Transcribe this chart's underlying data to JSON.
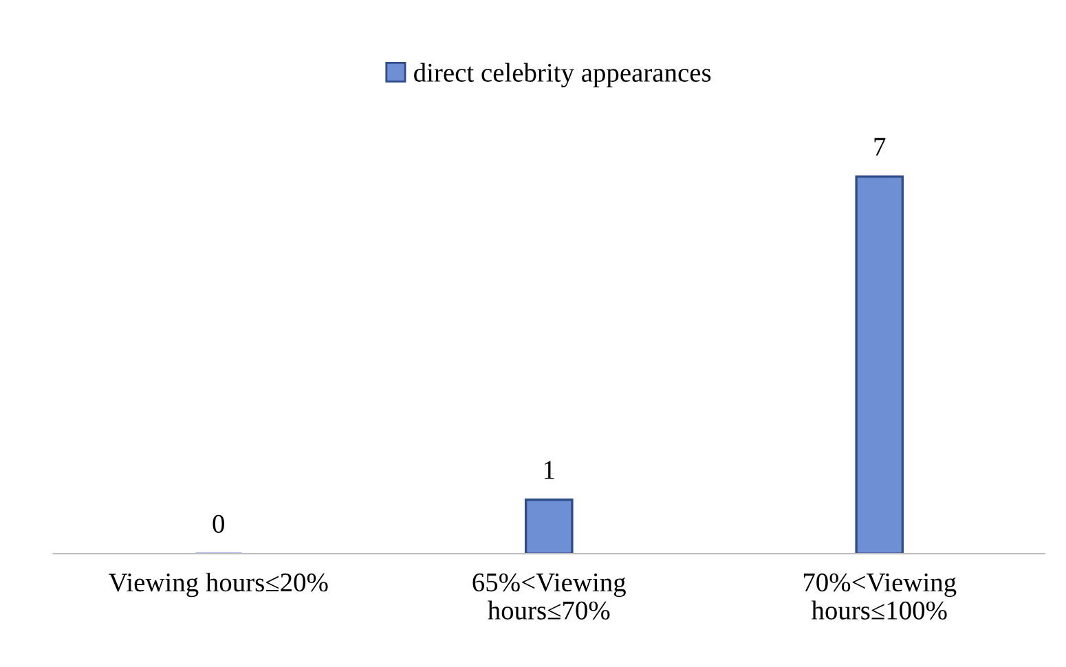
{
  "chart_data": {
    "type": "bar",
    "categories": [
      "Viewing hours≤20%",
      "65%<Viewing\nhours≤70%",
      "70%<Viewing\nhours≤100%"
    ],
    "series": [
      {
        "name": "direct celebrity appearances",
        "color": "#6f8fd4",
        "values": [
          0,
          1,
          7
        ]
      }
    ],
    "data_labels": true,
    "legend": "top"
  }
}
